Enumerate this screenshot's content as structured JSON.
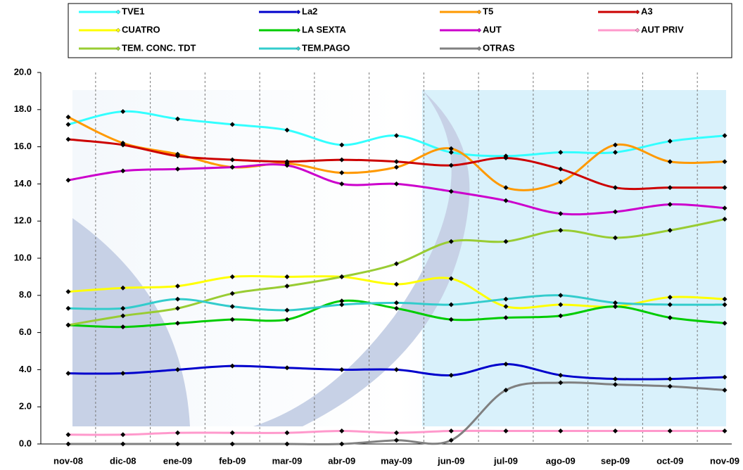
{
  "chart_data": {
    "type": "line",
    "categories": [
      "nov-08",
      "dic-08",
      "ene-09",
      "feb-09",
      "mar-09",
      "abr-09",
      "may-09",
      "jun-09",
      "jul-09",
      "ago-09",
      "sep-09",
      "oct-09",
      "nov-09"
    ],
    "series": [
      {
        "name": "TVE1",
        "color": "#33ffff",
        "values": [
          17.2,
          17.9,
          17.5,
          17.2,
          16.9,
          16.1,
          16.6,
          15.7,
          15.5,
          15.7,
          15.7,
          16.3,
          16.6
        ]
      },
      {
        "name": "La2",
        "color": "#0000cc",
        "values": [
          3.8,
          3.8,
          4.0,
          4.2,
          4.1,
          4.0,
          4.0,
          3.7,
          4.3,
          3.7,
          3.5,
          3.5,
          3.6
        ]
      },
      {
        "name": "T5",
        "color": "#ff9900",
        "values": [
          17.6,
          16.2,
          15.6,
          14.9,
          15.1,
          14.6,
          14.9,
          15.9,
          13.8,
          14.1,
          16.1,
          15.2,
          15.2
        ]
      },
      {
        "name": "A3",
        "color": "#cc0000",
        "values": [
          16.4,
          16.1,
          15.5,
          15.3,
          15.2,
          15.3,
          15.2,
          15.0,
          15.4,
          14.8,
          13.8,
          13.8,
          13.8
        ]
      },
      {
        "name": "CUATRO",
        "color": "#ffff00",
        "values": [
          8.2,
          8.4,
          8.5,
          9.0,
          9.0,
          9.0,
          8.6,
          8.9,
          7.4,
          7.5,
          7.4,
          7.9,
          7.8
        ]
      },
      {
        "name": "LA SEXTA",
        "color": "#00cc00",
        "values": [
          6.4,
          6.3,
          6.5,
          6.7,
          6.7,
          7.7,
          7.3,
          6.7,
          6.8,
          6.9,
          7.4,
          6.8,
          6.5
        ]
      },
      {
        "name": "AUT",
        "color": "#cc00cc",
        "values": [
          14.2,
          14.7,
          14.8,
          14.9,
          15.0,
          14.0,
          14.0,
          13.6,
          13.1,
          12.4,
          12.5,
          12.9,
          12.7
        ]
      },
      {
        "name": "AUT PRIV",
        "color": "#ff99cc",
        "values": [
          0.5,
          0.5,
          0.6,
          0.6,
          0.6,
          0.7,
          0.6,
          0.7,
          0.7,
          0.7,
          0.7,
          0.7,
          0.7
        ]
      },
      {
        "name": "TEM. CONC. TDT",
        "color": "#99cc33",
        "values": [
          6.4,
          6.9,
          7.3,
          8.1,
          8.5,
          9.0,
          9.7,
          10.9,
          10.9,
          11.5,
          11.1,
          11.5,
          12.1
        ]
      },
      {
        "name": "TEM.PAGO",
        "color": "#33cccc",
        "values": [
          7.3,
          7.3,
          7.8,
          7.4,
          7.2,
          7.5,
          7.6,
          7.5,
          7.8,
          8.0,
          7.6,
          7.5,
          7.5
        ]
      },
      {
        "name": "OTRAS",
        "color": "#808080",
        "values": [
          0,
          0,
          0,
          0,
          0,
          0,
          0.2,
          0.2,
          2.9,
          3.3,
          3.2,
          3.1,
          2.9
        ]
      }
    ],
    "ylim": [
      0,
      20
    ],
    "yticks": [
      {
        "value": 0,
        "label": "0.0"
      },
      {
        "value": 2,
        "label": "2.0"
      },
      {
        "value": 4,
        "label": "4.0"
      },
      {
        "value": 6,
        "label": "6.0"
      },
      {
        "value": 8,
        "label": "8.0"
      },
      {
        "value": 10,
        "label": "10.0"
      },
      {
        "value": 12,
        "label": "12.0"
      },
      {
        "value": 14,
        "label": "14.0"
      },
      {
        "value": 16,
        "label": "16.0"
      },
      {
        "value": 18,
        "label": "18.0"
      },
      {
        "value": 20,
        "label": "20.0"
      }
    ],
    "grid": "x"
  }
}
